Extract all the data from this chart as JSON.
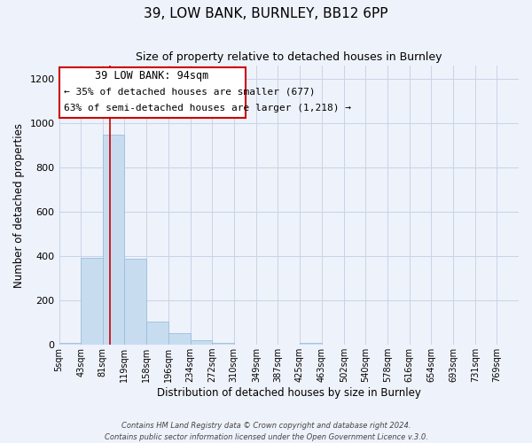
{
  "title": "39, LOW BANK, BURNLEY, BB12 6PP",
  "subtitle": "Size of property relative to detached houses in Burnley",
  "xlabel": "Distribution of detached houses by size in Burnley",
  "ylabel": "Number of detached properties",
  "bar_color": "#c8dcf0",
  "bar_edge_color": "#9bbedd",
  "grid_color": "#c8d4e8",
  "background_color": "#eef2fa",
  "annotation_box_color": "#ffffff",
  "annotation_box_edge": "#cc0000",
  "property_line_color": "#cc0000",
  "property_size": 94,
  "annotation_line1": "39 LOW BANK: 94sqm",
  "annotation_line2": "← 35% of detached houses are smaller (677)",
  "annotation_line3": "63% of semi-detached houses are larger (1,218) →",
  "footer_line1": "Contains HM Land Registry data © Crown copyright and database right 2024.",
  "footer_line2": "Contains public sector information licensed under the Open Government Licence v.3.0.",
  "bin_labels": [
    "5sqm",
    "43sqm",
    "81sqm",
    "119sqm",
    "158sqm",
    "196sqm",
    "234sqm",
    "272sqm",
    "310sqm",
    "349sqm",
    "387sqm",
    "425sqm",
    "463sqm",
    "502sqm",
    "540sqm",
    "578sqm",
    "616sqm",
    "654sqm",
    "693sqm",
    "731sqm",
    "769sqm"
  ],
  "bin_edges": [
    5,
    43,
    81,
    119,
    158,
    196,
    234,
    272,
    310,
    349,
    387,
    425,
    463,
    502,
    540,
    578,
    616,
    654,
    693,
    731,
    769
  ],
  "bar_heights": [
    10,
    395,
    950,
    390,
    105,
    52,
    22,
    10,
    0,
    0,
    0,
    10,
    0,
    0,
    0,
    0,
    0,
    0,
    0,
    0
  ],
  "ylim": [
    0,
    1260
  ],
  "yticks": [
    0,
    200,
    400,
    600,
    800,
    1000,
    1200
  ]
}
